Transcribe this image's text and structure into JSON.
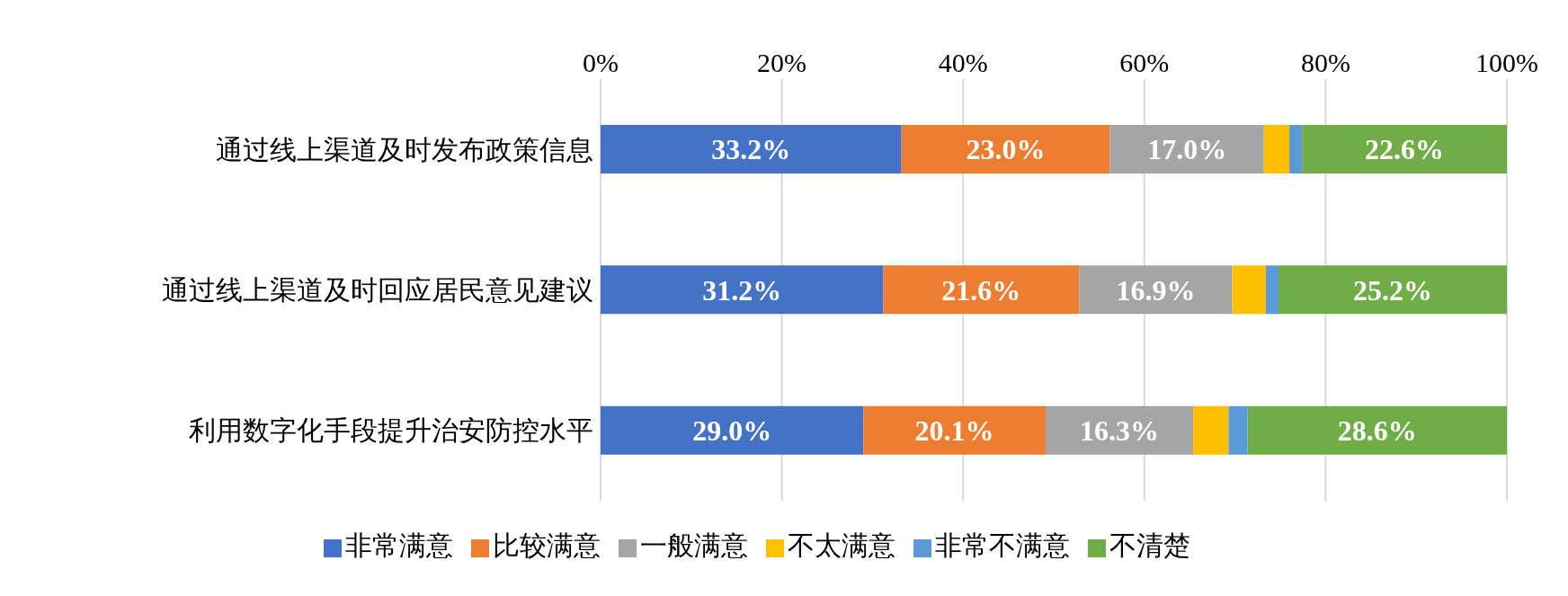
{
  "chart_data": {
    "type": "bar",
    "orientation": "horizontal",
    "stacked": true,
    "categories": [
      "通过线上渠道及时发布政策信息",
      "通过线上渠道及时回应居民意见建议",
      "利用数字化手段提升治安防控水平"
    ],
    "series": [
      {
        "name": "非常满意",
        "color": "#4472c4",
        "values": [
          33.2,
          31.2,
          29.0
        ],
        "value_labels": [
          "33.2%",
          "31.2%",
          "29.0%"
        ]
      },
      {
        "name": "比较满意",
        "color": "#ed7d31",
        "values": [
          23.0,
          21.6,
          20.1
        ],
        "value_labels": [
          "23.0%",
          "21.6%",
          "20.1%"
        ]
      },
      {
        "name": "一般满意",
        "color": "#a5a5a5",
        "values": [
          17.0,
          16.9,
          16.3
        ],
        "value_labels": [
          "17.0%",
          "16.9%",
          "16.3%"
        ]
      },
      {
        "name": "不太满意",
        "color": "#ffc000",
        "values": [
          2.8,
          3.7,
          3.9
        ],
        "value_labels": [
          null,
          null,
          null
        ]
      },
      {
        "name": "非常不满意",
        "color": "#5b9bd5",
        "values": [
          1.4,
          1.4,
          2.1
        ],
        "value_labels": [
          null,
          null,
          null
        ]
      },
      {
        "name": "不清楚",
        "color": "#70ad47",
        "values": [
          22.6,
          25.2,
          28.6
        ],
        "value_labels": [
          "22.6%",
          "25.2%",
          "28.6%"
        ]
      }
    ],
    "xlim": [
      0,
      100
    ],
    "xticks": [
      {
        "value": 0,
        "label": "0%"
      },
      {
        "value": 20,
        "label": "20%"
      },
      {
        "value": 40,
        "label": "40%"
      },
      {
        "value": 60,
        "label": "60%"
      },
      {
        "value": 80,
        "label": "80%"
      },
      {
        "value": 100,
        "label": "100%"
      }
    ],
    "grid": "x",
    "legend": "bottom"
  }
}
